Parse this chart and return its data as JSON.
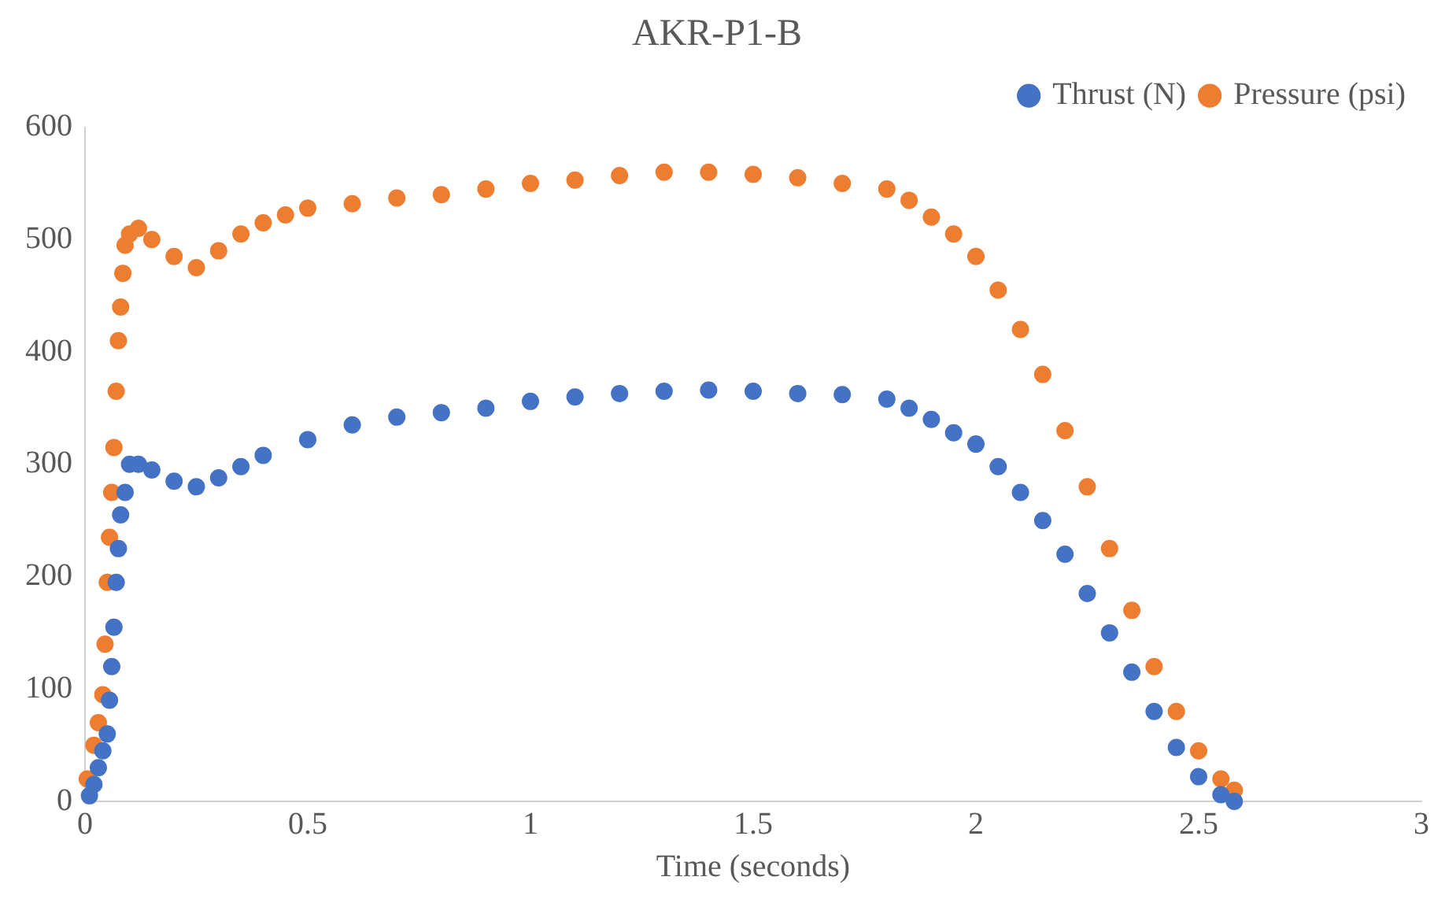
{
  "chart_data": {
    "type": "scatter",
    "title": "AKR-P1-B",
    "xlabel": "Time (seconds)",
    "xlim": [
      0,
      3
    ],
    "xticks": [
      0,
      0.5,
      1,
      1.5,
      2,
      2.5,
      3
    ],
    "ylim": [
      0,
      600
    ],
    "yticks": [
      0,
      100,
      200,
      300,
      400,
      500,
      600
    ],
    "grid": false,
    "legend": "top right",
    "marker": "circle",
    "series": [
      {
        "name": "Thrust (N)",
        "color": "#4472c4",
        "x": [
          0.01,
          0.02,
          0.03,
          0.04,
          0.05,
          0.055,
          0.06,
          0.065,
          0.07,
          0.075,
          0.08,
          0.09,
          0.1,
          0.12,
          0.15,
          0.2,
          0.25,
          0.3,
          0.35,
          0.4,
          0.5,
          0.6,
          0.7,
          0.8,
          0.9,
          1.0,
          1.1,
          1.2,
          1.3,
          1.4,
          1.5,
          1.6,
          1.7,
          1.8,
          1.85,
          1.9,
          1.95,
          2.0,
          2.05,
          2.1,
          2.15,
          2.2,
          2.25,
          2.3,
          2.35,
          2.4,
          2.45,
          2.5,
          2.55,
          2.58
        ],
        "values": [
          5,
          15,
          30,
          45,
          60,
          90,
          120,
          155,
          195,
          225,
          255,
          275,
          300,
          300,
          295,
          285,
          280,
          288,
          298,
          308,
          322,
          335,
          342,
          346,
          350,
          356,
          360,
          363,
          365,
          366,
          365,
          363,
          362,
          358,
          350,
          340,
          328,
          318,
          298,
          275,
          250,
          220,
          185,
          150,
          115,
          80,
          48,
          22,
          6,
          0
        ]
      },
      {
        "name": "Pressure (psi)",
        "color": "#ed7d31",
        "x": [
          0.005,
          0.02,
          0.03,
          0.04,
          0.045,
          0.05,
          0.055,
          0.06,
          0.065,
          0.07,
          0.075,
          0.08,
          0.085,
          0.09,
          0.1,
          0.12,
          0.15,
          0.2,
          0.25,
          0.3,
          0.35,
          0.4,
          0.45,
          0.5,
          0.6,
          0.7,
          0.8,
          0.9,
          1.0,
          1.1,
          1.2,
          1.3,
          1.4,
          1.5,
          1.6,
          1.7,
          1.8,
          1.85,
          1.9,
          1.95,
          2.0,
          2.05,
          2.1,
          2.15,
          2.2,
          2.25,
          2.3,
          2.35,
          2.4,
          2.45,
          2.5,
          2.55,
          2.58
        ],
        "values": [
          20,
          50,
          70,
          95,
          140,
          195,
          235,
          275,
          315,
          365,
          410,
          440,
          470,
          495,
          505,
          510,
          500,
          485,
          475,
          490,
          505,
          515,
          522,
          528,
          532,
          537,
          540,
          545,
          550,
          553,
          557,
          560,
          560,
          558,
          555,
          550,
          545,
          535,
          520,
          505,
          485,
          455,
          420,
          380,
          330,
          280,
          225,
          170,
          120,
          80,
          45,
          20,
          10
        ]
      }
    ]
  }
}
